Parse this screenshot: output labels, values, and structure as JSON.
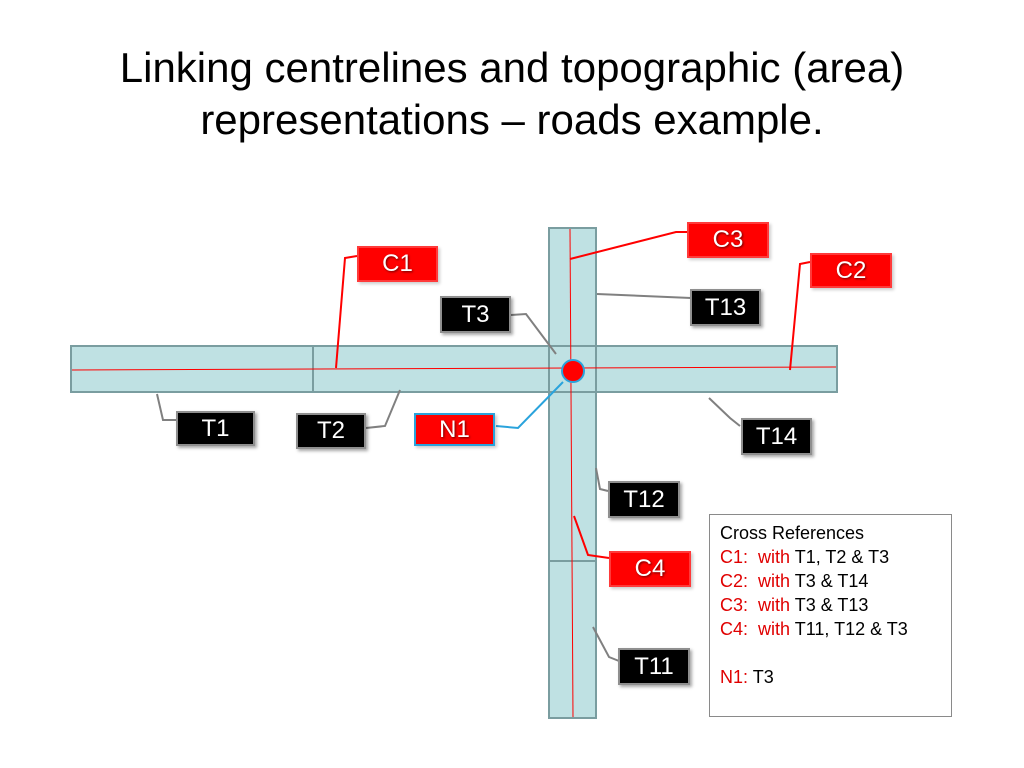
{
  "slide": {
    "title_line1": "Linking centrelines and topographic (area)",
    "title_line2": "representations – roads example."
  },
  "colors": {
    "road_fill": "#bfe1e3",
    "road_outline": "#7a9da0",
    "centreline": "#ff0000",
    "node": "#ff0000",
    "node_outline": "#2aa3dc",
    "leader_grey": "#808080",
    "leader_red": "#ff0000",
    "leader_blue": "#2aa3dc"
  },
  "labels": {
    "t1": "T1",
    "t2": "T2",
    "t3": "T3",
    "t11": "T11",
    "t12": "T12",
    "t13": "T13",
    "t14": "T14",
    "c1": "C1",
    "c2": "C2",
    "c3": "C3",
    "c4": "C4",
    "n1": "N1"
  },
  "cross_references": {
    "heading": "Cross References",
    "rows": [
      {
        "key": "C1:",
        "with": "with",
        "targets": "T1, T2 & T3"
      },
      {
        "key": "C2:",
        "with": "with",
        "targets": "T3 & T14"
      },
      {
        "key": "C3:",
        "with": "with",
        "targets": "T3 & T13"
      },
      {
        "key": "C4:",
        "with": "with",
        "targets": "T11, T12 & T3"
      }
    ],
    "node_row": {
      "key": "N1:",
      "targets": "T3"
    }
  }
}
